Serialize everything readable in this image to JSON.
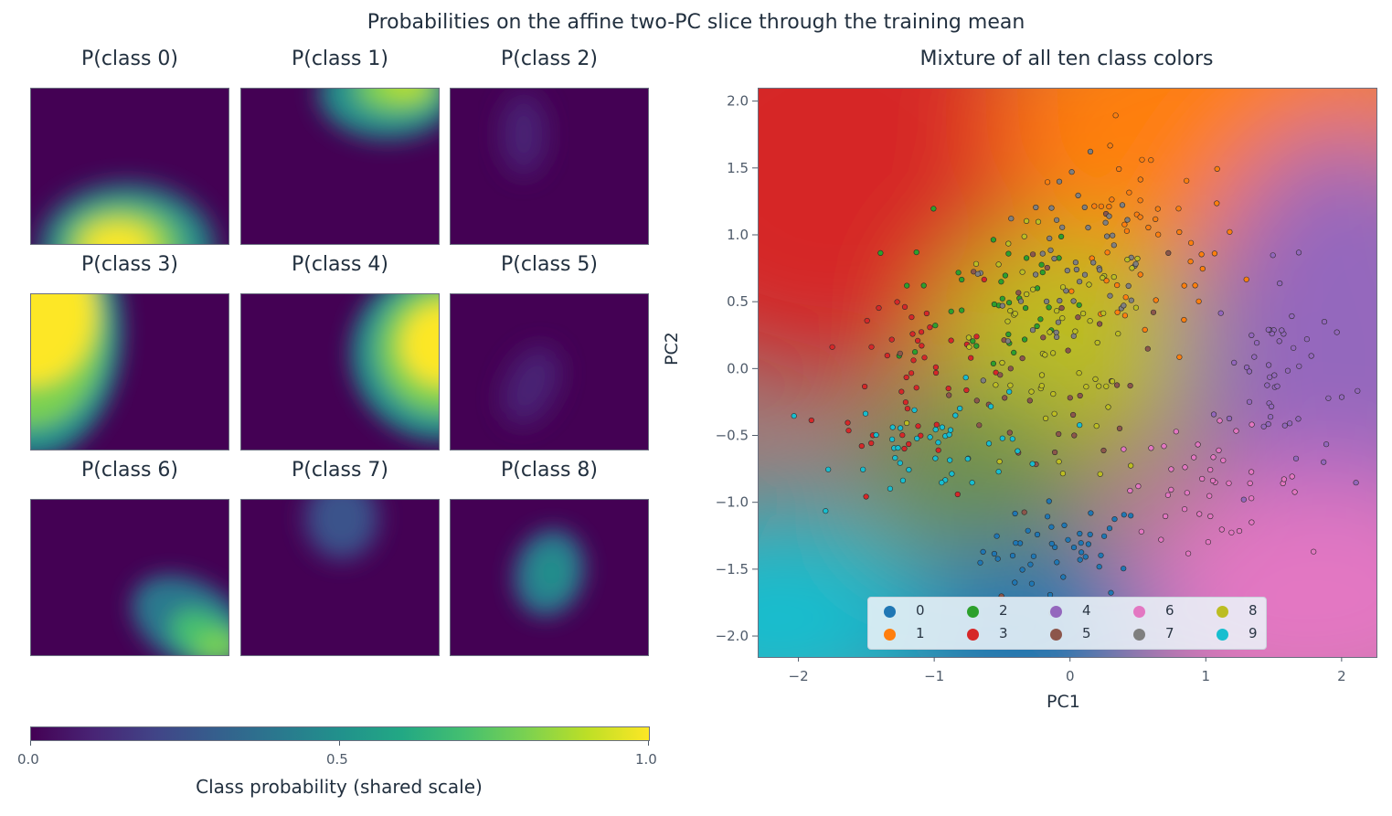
{
  "figure": {
    "suptitle": "Probabilities on the affine two-PC slice through the training mean"
  },
  "panels": [
    {
      "title": "P(class 0)"
    },
    {
      "title": "P(class 1)"
    },
    {
      "title": "P(class 2)"
    },
    {
      "title": "P(class 3)"
    },
    {
      "title": "P(class 4)"
    },
    {
      "title": "P(class 5)"
    },
    {
      "title": "P(class 6)"
    },
    {
      "title": "P(class 7)"
    },
    {
      "title": "P(class 8)"
    }
  ],
  "colorbar": {
    "label": "Class probability (shared scale)",
    "ticks": [
      "0.0",
      "0.5",
      "1.0"
    ],
    "colormap": "viridis",
    "range": [
      0,
      1
    ]
  },
  "mixture": {
    "title": "Mixture of all ten class colors",
    "xlabel": "PC1",
    "ylabel": "PC2"
  },
  "chart_data": [
    {
      "type": "heatmap",
      "title": "P(class 0)",
      "colormap": "viridis",
      "value_range": [
        0,
        1
      ],
      "peak_value": 1.0,
      "peak_region": "bottom-center"
    },
    {
      "type": "heatmap",
      "title": "P(class 1)",
      "colormap": "viridis",
      "value_range": [
        0,
        1
      ],
      "peak_value": 0.9,
      "peak_region": "top-right"
    },
    {
      "type": "heatmap",
      "title": "P(class 2)",
      "colormap": "viridis",
      "value_range": [
        0,
        1
      ],
      "peak_value": 0.15,
      "peak_region": "top-center"
    },
    {
      "type": "heatmap",
      "title": "P(class 3)",
      "colormap": "viridis",
      "value_range": [
        0,
        1
      ],
      "peak_value": 1.0,
      "peak_region": "top-left"
    },
    {
      "type": "heatmap",
      "title": "P(class 4)",
      "colormap": "viridis",
      "value_range": [
        0,
        1
      ],
      "peak_value": 1.0,
      "peak_region": "right"
    },
    {
      "type": "heatmap",
      "title": "P(class 5)",
      "colormap": "viridis",
      "value_range": [
        0,
        1
      ],
      "peak_value": 0.15,
      "peak_region": "center"
    },
    {
      "type": "heatmap",
      "title": "P(class 6)",
      "colormap": "viridis",
      "value_range": [
        0,
        1
      ],
      "peak_value": 0.9,
      "peak_region": "bottom-right"
    },
    {
      "type": "heatmap",
      "title": "P(class 7)",
      "colormap": "viridis",
      "value_range": [
        0,
        1
      ],
      "peak_value": 0.3,
      "peak_region": "top-center"
    },
    {
      "type": "heatmap",
      "title": "P(class 8)",
      "colormap": "viridis",
      "value_range": [
        0,
        1
      ],
      "peak_value": 0.5,
      "peak_region": "center"
    },
    {
      "type": "scatter",
      "title": "Mixture of all ten class colors",
      "xlabel": "PC1",
      "ylabel": "PC2",
      "xlim": [
        -2.3,
        2.25
      ],
      "ylim": [
        -2.15,
        2.1
      ],
      "xticks": [
        "−2",
        "−1",
        "0",
        "1",
        "2"
      ],
      "yticks": [
        "2.0",
        "1.5",
        "1.0",
        "0.5",
        "0.0",
        "−0.5",
        "−1.0",
        "−1.5",
        "−2.0"
      ],
      "xtick_values": [
        -2,
        -1,
        0,
        1,
        2
      ],
      "ytick_values": [
        2.0,
        1.5,
        1.0,
        0.5,
        0.0,
        -0.5,
        -1.0,
        -1.5,
        -2.0
      ],
      "legend_position": "lower-center",
      "grid": false,
      "class_colors": [
        "#1f77b4",
        "#ff7f0e",
        "#2ca02c",
        "#d62728",
        "#9467bd",
        "#8c564b",
        "#e377c2",
        "#7f7f7f",
        "#bcbd22",
        "#17becf"
      ],
      "series": [
        {
          "name": "0",
          "center": [
            -0.05,
            -1.35
          ],
          "spread": [
            0.3,
            0.18
          ],
          "count": 45
        },
        {
          "name": "1",
          "center": [
            0.55,
            0.9
          ],
          "spread": [
            0.35,
            0.4
          ],
          "count": 50
        },
        {
          "name": "2",
          "center": [
            -0.6,
            0.55
          ],
          "spread": [
            0.35,
            0.3
          ],
          "count": 40
        },
        {
          "name": "3",
          "center": [
            -1.15,
            0.0
          ],
          "spread": [
            0.35,
            0.45
          ],
          "count": 50
        },
        {
          "name": "4",
          "center": [
            1.5,
            -0.05
          ],
          "spread": [
            0.22,
            0.4
          ],
          "count": 50
        },
        {
          "name": "5",
          "center": [
            -0.1,
            0.0
          ],
          "spread": [
            0.4,
            0.5
          ],
          "count": 40
        },
        {
          "name": "6",
          "center": [
            1.0,
            -0.85
          ],
          "spread": [
            0.35,
            0.2
          ],
          "count": 45
        },
        {
          "name": "7",
          "center": [
            0.05,
            0.75
          ],
          "spread": [
            0.35,
            0.45
          ],
          "count": 55
        },
        {
          "name": "8",
          "center": [
            -0.15,
            0.05
          ],
          "spread": [
            0.4,
            0.5
          ],
          "count": 60
        },
        {
          "name": "9",
          "center": [
            -0.9,
            -0.55
          ],
          "spread": [
            0.4,
            0.2
          ],
          "count": 45
        }
      ]
    }
  ]
}
